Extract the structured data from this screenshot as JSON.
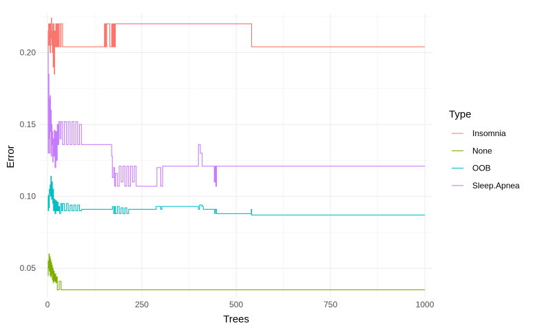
{
  "chart_data": {
    "type": "line",
    "xlabel": "Trees",
    "ylabel": "Error",
    "xlim": [
      -20,
      1020
    ],
    "ylim": [
      0.03,
      0.227
    ],
    "x_ticks": [
      0,
      250,
      500,
      750,
      1000
    ],
    "x_tick_labels": [
      "0",
      "250",
      "500",
      "750",
      "1000"
    ],
    "y_ticks": [
      0.05,
      0.1,
      0.15,
      0.2
    ],
    "y_tick_labels": [
      "0.05",
      "0.10",
      "0.15",
      "0.20"
    ],
    "grid": true,
    "legend": {
      "title": "Type",
      "position": "right"
    },
    "series": [
      {
        "name": "Insomnia",
        "color": "#F8766D",
        "x": [
          1,
          2,
          3,
          4,
          5,
          6,
          7,
          8,
          9,
          10,
          11,
          12,
          13,
          14,
          15,
          16,
          17,
          18,
          19,
          20,
          22,
          24,
          26,
          28,
          30,
          33,
          36,
          40,
          150,
          151,
          152,
          153,
          154,
          155,
          156,
          157,
          160,
          165,
          170,
          171,
          172,
          173,
          174,
          175,
          176,
          177,
          178,
          179,
          180,
          540,
          541,
          1000
        ],
        "y": [
          0.18,
          0.215,
          0.22,
          0.205,
          0.22,
          0.215,
          0.2,
          0.22,
          0.21,
          0.224,
          0.205,
          0.215,
          0.2,
          0.22,
          0.19,
          0.22,
          0.205,
          0.185,
          0.215,
          0.204,
          0.22,
          0.204,
          0.22,
          0.204,
          0.22,
          0.204,
          0.22,
          0.204,
          0.204,
          0.22,
          0.204,
          0.22,
          0.204,
          0.22,
          0.204,
          0.22,
          0.22,
          0.204,
          0.22,
          0.204,
          0.22,
          0.204,
          0.22,
          0.204,
          0.22,
          0.204,
          0.22,
          0.204,
          0.22,
          0.22,
          0.204,
          0.204
        ]
      },
      {
        "name": "None",
        "color": "#7CAE00",
        "x": [
          1,
          2,
          3,
          4,
          5,
          6,
          7,
          8,
          9,
          10,
          11,
          12,
          13,
          14,
          15,
          16,
          18,
          20,
          22,
          24,
          26,
          28,
          30,
          31,
          33,
          35,
          36,
          40,
          1000
        ],
        "y": [
          0.045,
          0.055,
          0.05,
          0.06,
          0.048,
          0.058,
          0.045,
          0.056,
          0.044,
          0.054,
          0.046,
          0.052,
          0.042,
          0.05,
          0.04,
          0.048,
          0.041,
          0.046,
          0.04,
          0.044,
          0.035,
          0.035,
          0.035,
          0.041,
          0.041,
          0.041,
          0.035,
          0.035,
          0.035
        ]
      },
      {
        "name": "OOB",
        "color": "#00BFC4",
        "x": [
          1,
          2,
          3,
          4,
          5,
          6,
          7,
          8,
          9,
          10,
          11,
          12,
          13,
          14,
          15,
          16,
          18,
          20,
          22,
          24,
          26,
          28,
          30,
          32,
          35,
          38,
          40,
          45,
          50,
          55,
          60,
          65,
          70,
          75,
          80,
          85,
          90,
          170,
          172,
          175,
          178,
          180,
          185,
          190,
          195,
          200,
          205,
          210,
          215,
          230,
          285,
          288,
          300,
          303,
          400,
          403,
          410,
          413,
          440,
          443,
          445,
          448,
          540,
          541,
          1000
        ],
        "y": [
          0.1,
          0.09,
          0.101,
          0.092,
          0.105,
          0.102,
          0.108,
          0.1,
          0.114,
          0.104,
          0.098,
          0.11,
          0.1,
          0.095,
          0.105,
          0.09,
          0.098,
          0.088,
          0.097,
          0.09,
          0.096,
          0.09,
          0.093,
          0.088,
          0.095,
          0.09,
          0.095,
          0.09,
          0.095,
          0.09,
          0.094,
          0.09,
          0.094,
          0.09,
          0.094,
          0.09,
          0.091,
          0.091,
          0.093,
          0.088,
          0.093,
          0.088,
          0.093,
          0.088,
          0.092,
          0.088,
          0.092,
          0.088,
          0.091,
          0.091,
          0.091,
          0.093,
          0.091,
          0.093,
          0.091,
          0.094,
          0.093,
          0.091,
          0.091,
          0.088,
          0.091,
          0.088,
          0.091,
          0.087,
          0.087
        ]
      },
      {
        "name": "Sleep.Apnea",
        "color": "#C77CFF",
        "x": [
          1,
          2,
          3,
          4,
          5,
          6,
          7,
          8,
          9,
          10,
          11,
          12,
          13,
          14,
          15,
          16,
          18,
          20,
          22,
          24,
          26,
          28,
          30,
          33,
          36,
          40,
          45,
          50,
          55,
          60,
          65,
          70,
          75,
          80,
          85,
          90,
          95,
          165,
          170,
          172,
          175,
          178,
          180,
          185,
          190,
          195,
          200,
          205,
          210,
          215,
          220,
          225,
          230,
          235,
          240,
          245,
          250,
          255,
          280,
          290,
          300,
          305,
          310,
          395,
          400,
          405,
          410,
          440,
          442,
          444,
          446,
          448,
          1000
        ],
        "y": [
          0.2,
          0.13,
          0.185,
          0.14,
          0.168,
          0.13,
          0.17,
          0.145,
          0.16,
          0.128,
          0.15,
          0.136,
          0.145,
          0.124,
          0.14,
          0.128,
          0.146,
          0.12,
          0.145,
          0.125,
          0.15,
          0.136,
          0.152,
          0.14,
          0.152,
          0.136,
          0.152,
          0.136,
          0.152,
          0.136,
          0.152,
          0.136,
          0.152,
          0.136,
          0.15,
          0.136,
          0.136,
          0.136,
          0.128,
          0.113,
          0.12,
          0.107,
          0.116,
          0.107,
          0.121,
          0.11,
          0.121,
          0.107,
          0.121,
          0.107,
          0.121,
          0.11,
          0.121,
          0.107,
          0.107,
          0.107,
          0.107,
          0.107,
          0.107,
          0.12,
          0.107,
          0.121,
          0.121,
          0.121,
          0.136,
          0.13,
          0.121,
          0.121,
          0.11,
          0.121,
          0.107,
          0.121,
          0.121
        ]
      }
    ]
  }
}
